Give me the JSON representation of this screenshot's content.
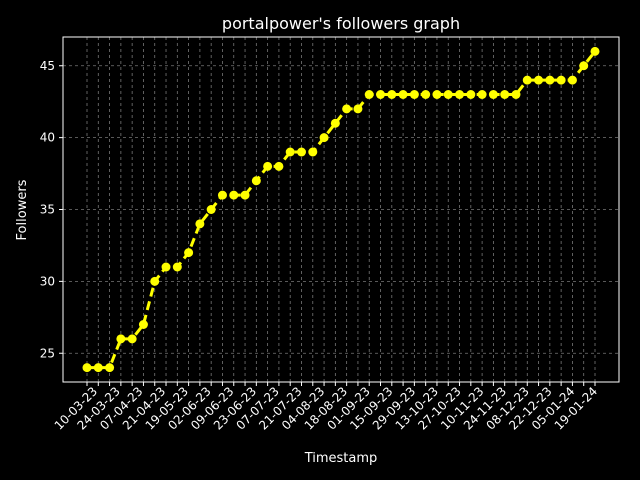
{
  "chart_data": {
    "type": "line",
    "title": "portalpower's followers graph",
    "xlabel": "Timestamp",
    "ylabel": "Followers",
    "ylim": [
      23,
      47
    ],
    "yticks": [
      25,
      30,
      35,
      40,
      45
    ],
    "xtick_labels": [
      "10-03-23",
      "24-03-23",
      "07-04-23",
      "21-04-23",
      "19-05-23",
      "02-06-23",
      "09-06-23",
      "23-06-23",
      "07-07-23",
      "21-07-23",
      "04-08-23",
      "18-08-23",
      "01-09-23",
      "15-09-23",
      "29-09-23",
      "13-10-23",
      "27-10-23",
      "10-11-23",
      "24-11-23",
      "08-12-23",
      "22-12-23",
      "05-01-24",
      "19-01-24"
    ],
    "grid": true,
    "series": [
      {
        "color": "#ffff00",
        "values": [
          24,
          24,
          24,
          26,
          26,
          27,
          30,
          31,
          31,
          32,
          34,
          35,
          36,
          36,
          36,
          37,
          38,
          38,
          39,
          39,
          39,
          40,
          41,
          42,
          42,
          43,
          43,
          43,
          43,
          43,
          43,
          43,
          43,
          43,
          43,
          43,
          43,
          43,
          43,
          44,
          44,
          44,
          44,
          44,
          45,
          46
        ]
      }
    ],
    "colors": {
      "background": "#000000",
      "foreground": "#ffffff",
      "line": "#ffff00",
      "grid": "#777777"
    }
  }
}
